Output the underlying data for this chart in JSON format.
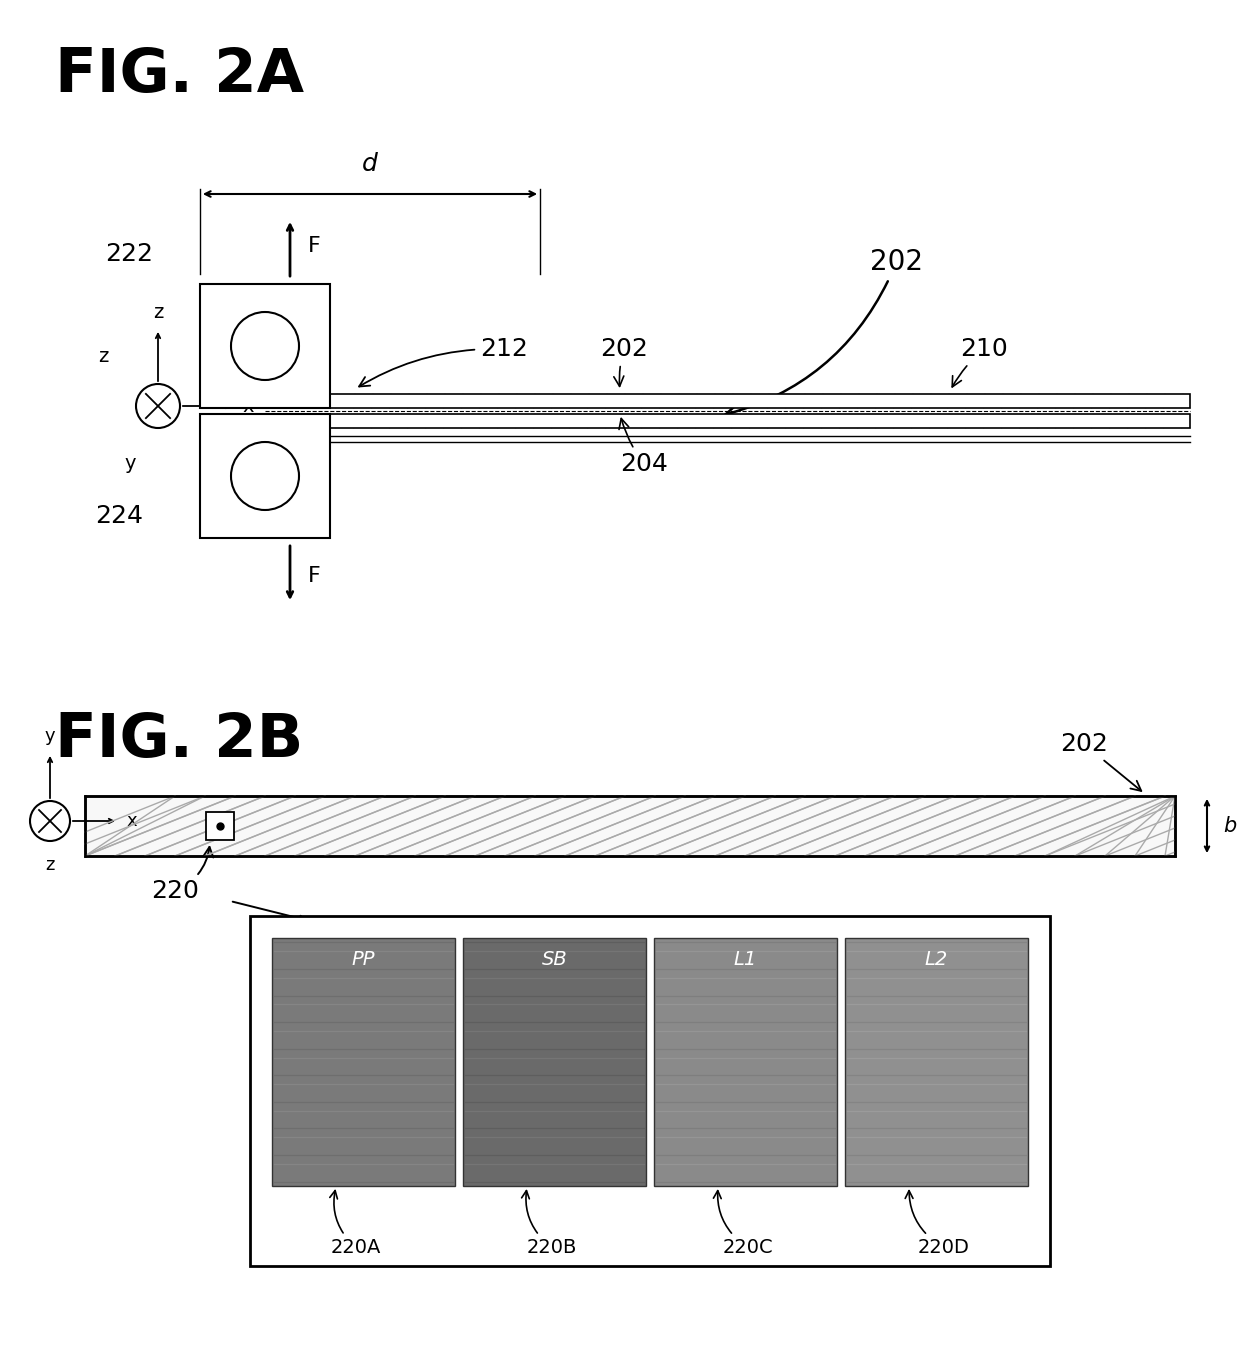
{
  "fig_width": 12.4,
  "fig_height": 13.66,
  "bg_color": "#ffffff",
  "fig2a_title": "FIG. 2A",
  "fig2b_title": "FIG. 2B",
  "labels": {
    "222": "222",
    "224": "224",
    "212": "212",
    "202": "202",
    "204": "204",
    "210": "210",
    "d": "d",
    "F": "F",
    "z": "z",
    "y": "y",
    "x": "x",
    "220": "220",
    "220A": "220A",
    "220B": "220B",
    "220C": "220C",
    "220D": "220D",
    "b_label": "b",
    "PP": "PP",
    "SB": "SB",
    "L1": "L1",
    "L2": "L2"
  },
  "line_color": "#000000"
}
